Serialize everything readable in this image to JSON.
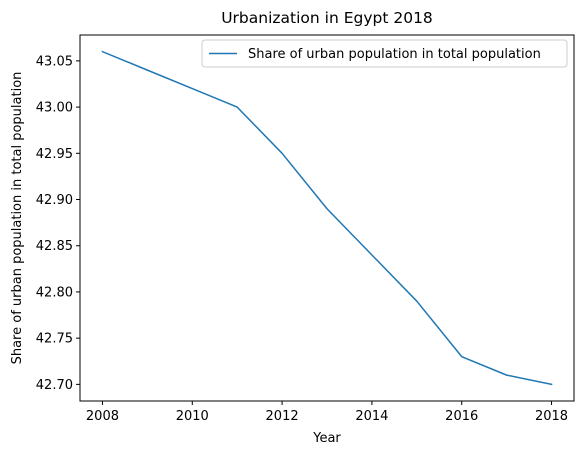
{
  "chart_data": {
    "type": "line",
    "title": "Urbanization in Egypt 2018",
    "xlabel": "Year",
    "ylabel": "Share of urban population in total population",
    "x": [
      2008,
      2009,
      2010,
      2011,
      2012,
      2013,
      2014,
      2015,
      2016,
      2017,
      2018
    ],
    "series": [
      {
        "name": "Share of urban population in total population",
        "values": [
          43.06,
          43.04,
          43.02,
          43.0,
          42.95,
          42.89,
          42.84,
          42.79,
          42.73,
          42.71,
          42.7
        ],
        "color": "#1f77b4"
      }
    ],
    "xlim": [
      2007.5,
      2018.5
    ],
    "ylim": [
      42.682,
      43.078
    ],
    "xticks": [
      2008,
      2010,
      2012,
      2014,
      2016,
      2018
    ],
    "xtick_labels": [
      "2008",
      "2010",
      "2012",
      "2014",
      "2016",
      "2018"
    ],
    "yticks": [
      42.7,
      42.75,
      42.8,
      42.85,
      42.9,
      42.95,
      43.0,
      43.05
    ],
    "ytick_labels": [
      "42.70",
      "42.75",
      "42.80",
      "42.85",
      "42.90",
      "42.95",
      "43.00",
      "43.05"
    ],
    "grid": false,
    "legend_position": "top-right"
  }
}
